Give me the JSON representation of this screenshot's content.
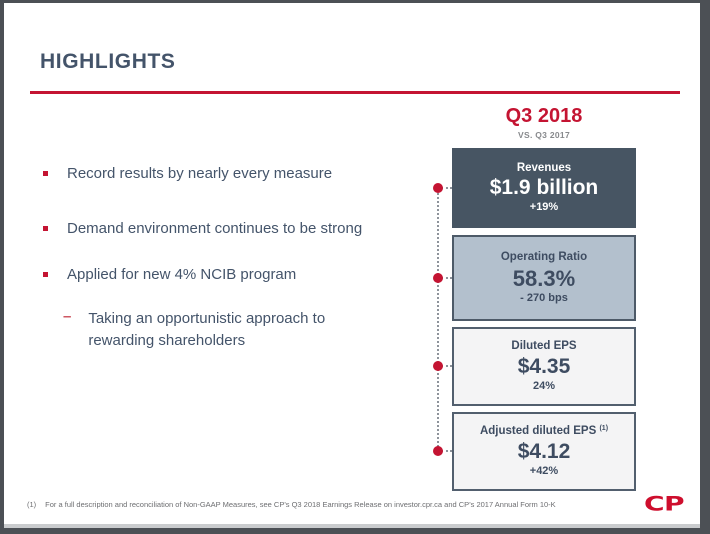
{
  "colors": {
    "accent_red": "#C41432",
    "logo_red": "#CE0E2D",
    "dark_slate_box": "#475563",
    "medium_slate_box": "#B3C0CD",
    "light_box": "#F4F4F5",
    "text_slate": "#44546A"
  },
  "title": "HIGHLIGHTS",
  "period": {
    "label": "Q3 2018",
    "compare_label": "VS. Q3 2017"
  },
  "bullets": [
    "Record results by nearly every measure",
    "Demand environment continues to be strong",
    "Applied for new 4% NCIB program"
  ],
  "sub_bullet": {
    "dash": "–",
    "text": "Taking an opportunistic approach to rewarding shareholders"
  },
  "metrics": [
    {
      "name": "Revenues",
      "value": "$1.9 billion",
      "change": "+19%"
    },
    {
      "name": "Operating Ratio",
      "value": "58.3%",
      "change": "- 270 bps"
    },
    {
      "name": "Diluted EPS",
      "value": "$4.35",
      "change": "24%"
    },
    {
      "name": "Adjusted diluted EPS",
      "footnote_ref": "(1)",
      "value": "$4.12",
      "change": "+42%"
    }
  ],
  "footnote": {
    "ref": "(1)",
    "text": "For a full description and reconciliation of Non-GAAP Measures, see CP's Q3 2018 Earnings Release on investor.cpr.ca and CP's 2017 Annual Form 10-K"
  },
  "logo": {
    "text": "CP"
  }
}
